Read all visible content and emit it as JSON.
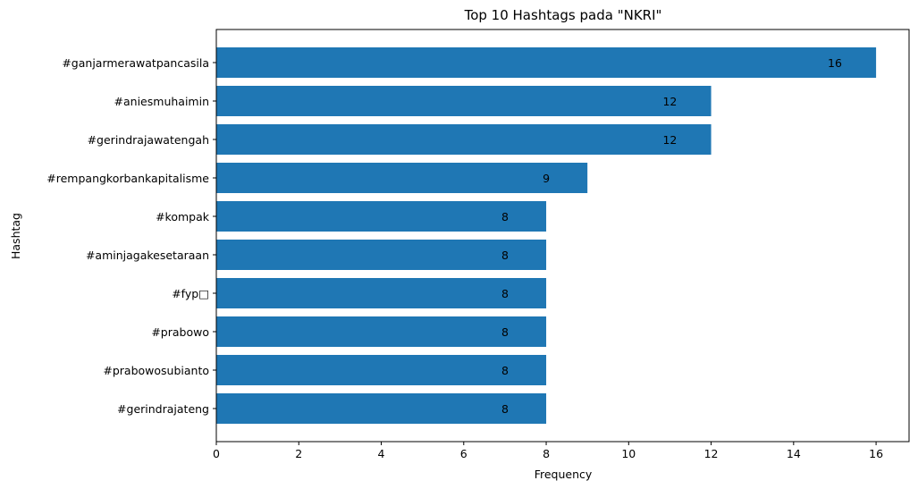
{
  "chart_data": {
    "type": "bar",
    "orientation": "horizontal",
    "title": "Top 10 Hashtags pada \"NKRI\"",
    "xlabel": "Frequency",
    "ylabel": "Hashtag",
    "categories": [
      "#ganjarmerawatpancasila",
      "#aniesmuhaimin",
      "#gerindrajawatengah",
      "#rempangkorbankapitalisme",
      "#kompak",
      "#aminjagakesetaraan",
      "#fyp□",
      "#prabowo",
      "#prabowosubianto",
      "#gerindrajateng"
    ],
    "values": [
      16,
      12,
      12,
      9,
      8,
      8,
      8,
      8,
      8,
      8
    ],
    "data_labels": [
      "16",
      "12",
      "12",
      "9",
      "8",
      "8",
      "8",
      "8",
      "8",
      "8"
    ],
    "xticks": [
      0,
      2,
      4,
      6,
      8,
      10,
      12,
      14,
      16
    ],
    "xlim": [
      0,
      16.8
    ],
    "grid": false,
    "bar_color": "#1f77b4"
  }
}
